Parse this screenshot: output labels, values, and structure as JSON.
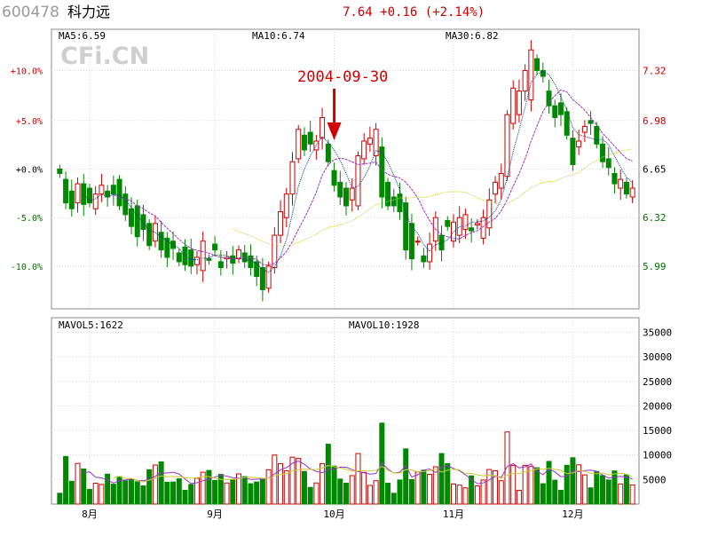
{
  "header": {
    "code": "600478",
    "name": "科力远",
    "quote": "7.64 +0.16 (+2.14%)"
  },
  "watermark": "CFi.CN",
  "annotation": {
    "text": "2004-09-30",
    "date": "2004-09-30"
  },
  "colors": {
    "up": "#cc0000",
    "down": "#008800",
    "ma5": "#0a3a8a",
    "ma10": "#9933cc",
    "ma30": "#cccc33",
    "frame": "#888888",
    "grid": "#d8d8d8",
    "red_text": "#d00000",
    "green_text": "#007000"
  },
  "icons": {
    "annotation_arrow": "down-arrow-icon"
  },
  "legend_price": [
    {
      "label": "MA5:6.59",
      "color": "#0a3a8a"
    },
    {
      "label": "MA10:6.74",
      "color": "#9933cc"
    },
    {
      "label": "MA30:6.82",
      "color": "#aaaa22"
    }
  ],
  "legend_volume": [
    {
      "label": "MAVOL5:1622",
      "color": "#9933cc"
    },
    {
      "label": "MAVOL10:1928",
      "color": "#aaaa22"
    }
  ],
  "chart_data": {
    "type": "candlestick",
    "base_price": 6.65,
    "price_axis": {
      "right_ticks": [
        "7.32",
        "6.98",
        "6.65",
        "6.32",
        "5.99"
      ],
      "right_values": [
        7.32,
        6.98,
        6.65,
        6.32,
        5.99
      ],
      "left_ticks": [
        "+10.0%",
        "+5.0%",
        "+0.0%",
        "-5.0%",
        "-10.0%"
      ],
      "ylim": [
        5.7,
        7.6
      ]
    },
    "volume_axis": {
      "ticks": [
        "35000",
        "30000",
        "25000",
        "20000",
        "15000",
        "10000",
        "5000"
      ],
      "values": [
        35000,
        30000,
        25000,
        20000,
        15000,
        10000,
        5000
      ],
      "ylim": [
        0,
        38000
      ]
    },
    "x_axis_labels": [
      {
        "label": "8月",
        "index": 5
      },
      {
        "label": "9月",
        "index": 26
      },
      {
        "label": "10月",
        "index": 46
      },
      {
        "label": "11月",
        "index": 66
      },
      {
        "label": "12月",
        "index": 86
      }
    ],
    "open": [
      6.65,
      6.58,
      6.5,
      6.42,
      6.55,
      6.52,
      6.38,
      6.48,
      6.5,
      6.54,
      6.58,
      6.48,
      6.38,
      6.4,
      6.34,
      6.28,
      6.16,
      6.22,
      6.18,
      6.16,
      6.08,
      6.12,
      6.1,
      6.0,
      5.96,
      6.04,
      6.14,
      6.02,
      6.04,
      6.06,
      6.04,
      6.08,
      6.06,
      6.02,
      5.98,
      5.84,
      5.98,
      6.2,
      6.32,
      6.48,
      6.72,
      6.88,
      6.9,
      6.78,
      6.86,
      6.82,
      6.64,
      6.56,
      6.52,
      6.44,
      6.4,
      6.72,
      6.82,
      6.74,
      6.8,
      6.56,
      6.46,
      6.48,
      6.42,
      6.28,
      6.16,
      6.06,
      6.02,
      6.16,
      6.2,
      6.3,
      6.16,
      6.2,
      6.24,
      6.25,
      6.27,
      6.18,
      6.25,
      6.48,
      6.52,
      6.6,
      6.96,
      7.02,
      7.18,
      7.12,
      7.4,
      7.32,
      7.18,
      7.08,
      7.1,
      7.04,
      6.86,
      6.8,
      6.9,
      6.98,
      6.94,
      6.82,
      6.72,
      6.62,
      6.52,
      6.56,
      6.46
    ],
    "close": [
      6.62,
      6.42,
      6.38,
      6.55,
      6.41,
      6.42,
      6.48,
      6.54,
      6.46,
      6.48,
      6.4,
      6.34,
      6.26,
      6.19,
      6.24,
      6.13,
      6.28,
      6.1,
      6.05,
      6.11,
      6.02,
      6.0,
      5.99,
      6.05,
      6.16,
      6.03,
      6.1,
      5.98,
      6.05,
      6.01,
      6.1,
      6.02,
      5.98,
      5.92,
      5.83,
      5.99,
      6.2,
      6.36,
      6.48,
      6.7,
      6.92,
      6.78,
      6.82,
      6.84,
      7.0,
      6.7,
      6.54,
      6.46,
      6.4,
      6.52,
      6.74,
      6.84,
      6.86,
      6.92,
      6.46,
      6.4,
      6.4,
      6.36,
      6.1,
      6.04,
      6.16,
      6.02,
      6.14,
      6.32,
      6.1,
      6.26,
      6.29,
      6.32,
      6.34,
      6.23,
      6.28,
      6.32,
      6.44,
      6.56,
      6.62,
      7.02,
      7.2,
      7.18,
      7.32,
      7.46,
      7.32,
      7.28,
      7.08,
      7.0,
      7.02,
      6.88,
      6.68,
      6.84,
      6.94,
      6.96,
      6.82,
      6.7,
      6.66,
      6.55,
      6.58,
      6.48,
      6.52
    ]
  }
}
